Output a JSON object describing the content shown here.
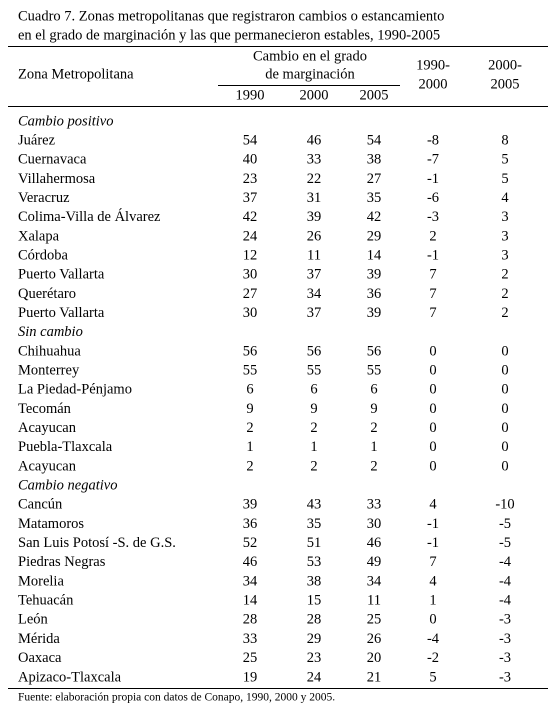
{
  "title": [
    "Cuadro 7. Zonas metropolitanas que registraron cambios o estancamiento",
    "en el grado de marginación y las que permanecieron estables, 1990-2005"
  ],
  "header": {
    "zone": "Zona Metropolitana",
    "change_group": [
      "Cambio en el grado",
      "de marginación"
    ],
    "years": [
      "1990",
      "2000",
      "2005"
    ],
    "diffs": [
      [
        "1990-",
        "2000"
      ],
      [
        "2000-",
        "2005"
      ]
    ]
  },
  "sections": [
    {
      "label": "Cambio positivo",
      "rows": [
        [
          "Juárez",
          54,
          46,
          54,
          -8,
          8
        ],
        [
          "Cuernavaca",
          40,
          33,
          38,
          -7,
          5
        ],
        [
          "Villahermosa",
          23,
          22,
          27,
          -1,
          5
        ],
        [
          "Veracruz",
          37,
          31,
          35,
          -6,
          4
        ],
        [
          "Colima-Villa de Álvarez",
          42,
          39,
          42,
          -3,
          3
        ],
        [
          "Xalapa",
          24,
          26,
          29,
          2,
          3
        ],
        [
          "Córdoba",
          12,
          11,
          14,
          -1,
          3
        ],
        [
          "Puerto Vallarta",
          30,
          37,
          39,
          7,
          2
        ],
        [
          "Querétaro",
          27,
          34,
          36,
          7,
          2
        ],
        [
          "Puerto Vallarta",
          30,
          37,
          39,
          7,
          2
        ]
      ]
    },
    {
      "label": "Sin cambio",
      "rows": [
        [
          "Chihuahua",
          56,
          56,
          56,
          0,
          0
        ],
        [
          "Monterrey",
          55,
          55,
          55,
          0,
          0
        ],
        [
          "La Piedad-Pénjamo",
          6,
          6,
          6,
          0,
          0
        ],
        [
          "Tecomán",
          9,
          9,
          9,
          0,
          0
        ],
        [
          "Acayucan",
          2,
          2,
          2,
          0,
          0
        ],
        [
          "Puebla-Tlaxcala",
          1,
          1,
          1,
          0,
          0
        ],
        [
          "Acayucan",
          2,
          2,
          2,
          0,
          0
        ]
      ]
    },
    {
      "label": "Cambio negativo",
      "rows": [
        [
          "Cancún",
          39,
          43,
          33,
          4,
          -10
        ],
        [
          "Matamoros",
          36,
          35,
          30,
          -1,
          -5
        ],
        [
          "San Luis Potosí -S. de G.S.",
          52,
          51,
          46,
          -1,
          -5
        ],
        [
          "Piedras Negras",
          46,
          53,
          49,
          7,
          -4
        ],
        [
          "Morelia",
          34,
          38,
          34,
          4,
          -4
        ],
        [
          "Tehuacán",
          14,
          15,
          11,
          1,
          -4
        ],
        [
          "León",
          28,
          28,
          25,
          0,
          -3
        ],
        [
          "Mérida",
          33,
          29,
          26,
          -4,
          -3
        ],
        [
          "Oaxaca",
          25,
          23,
          20,
          -2,
          -3
        ],
        [
          "Apizaco-Tlaxcala",
          19,
          24,
          21,
          5,
          -3
        ]
      ]
    }
  ],
  "footer": "Fuente: elaboración propia con datos de Conapo, 1990, 2000 y 2005."
}
